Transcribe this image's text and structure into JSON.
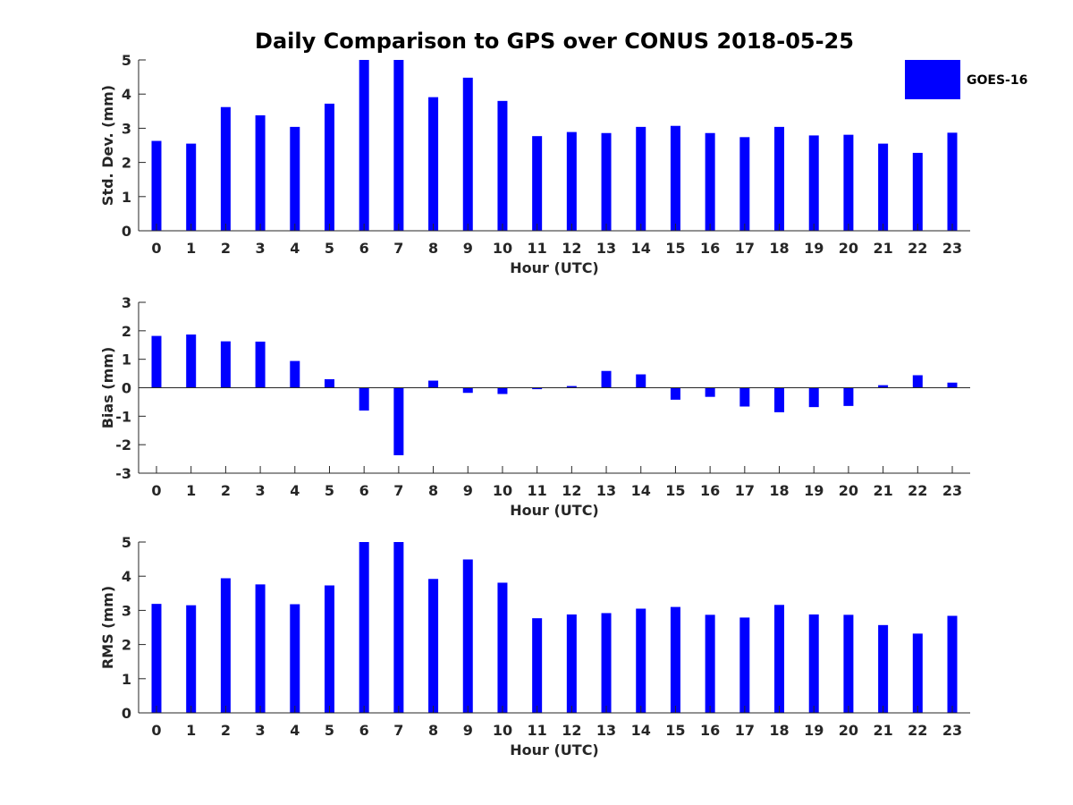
{
  "chart_data": {
    "title": "Daily Comparison to GPS over CONUS 2018-05-25",
    "legend": {
      "label": "GOES-16",
      "color": "#0000ff",
      "placement": "top-right"
    },
    "panels": [
      {
        "type": "bar",
        "xlabel": "Hour (UTC)",
        "ylabel": "Std. Dev. (mm)",
        "ylim": [
          0,
          5
        ],
        "yticks": [
          "0",
          "1",
          "2",
          "3",
          "4",
          "5"
        ],
        "categories": [
          "0",
          "1",
          "2",
          "3",
          "4",
          "5",
          "6",
          "7",
          "8",
          "9",
          "10",
          "11",
          "12",
          "13",
          "14",
          "15",
          "16",
          "17",
          "18",
          "19",
          "20",
          "21",
          "22",
          "23"
        ],
        "series": [
          {
            "name": "GOES-16",
            "values": [
              2.63,
              2.55,
              3.62,
              3.38,
              3.04,
              3.72,
              5.0,
              5.0,
              3.91,
              4.48,
              3.8,
              2.77,
              2.89,
              2.86,
              3.04,
              3.07,
              2.86,
              2.74,
              3.04,
              2.79,
              2.81,
              2.55,
              2.28,
              2.87
            ]
          }
        ]
      },
      {
        "type": "bar",
        "xlabel": "Hour (UTC)",
        "ylabel": "Bias (mm)",
        "ylim": [
          -3,
          3
        ],
        "yticks": [
          "-3",
          "-2",
          "-1",
          "0",
          "1",
          "2",
          "3"
        ],
        "categories": [
          "0",
          "1",
          "2",
          "3",
          "4",
          "5",
          "6",
          "7",
          "8",
          "9",
          "10",
          "11",
          "12",
          "13",
          "14",
          "15",
          "16",
          "17",
          "18",
          "19",
          "20",
          "21",
          "22",
          "23"
        ],
        "series": [
          {
            "name": "GOES-16",
            "values": [
              1.82,
              1.87,
              1.63,
              1.62,
              0.94,
              0.3,
              -0.8,
              -2.37,
              0.25,
              -0.18,
              -0.22,
              -0.05,
              0.06,
              0.59,
              0.47,
              -0.42,
              -0.32,
              -0.66,
              -0.86,
              -0.68,
              -0.64,
              0.09,
              0.44,
              0.18
            ]
          }
        ]
      },
      {
        "type": "bar",
        "xlabel": "Hour (UTC)",
        "ylabel": "RMS (mm)",
        "ylim": [
          0,
          5
        ],
        "yticks": [
          "0",
          "1",
          "2",
          "3",
          "4",
          "5"
        ],
        "categories": [
          "0",
          "1",
          "2",
          "3",
          "4",
          "5",
          "6",
          "7",
          "8",
          "9",
          "10",
          "11",
          "12",
          "13",
          "14",
          "15",
          "16",
          "17",
          "18",
          "19",
          "20",
          "21",
          "22",
          "23"
        ],
        "series": [
          {
            "name": "GOES-16",
            "values": [
              3.19,
              3.15,
              3.94,
              3.76,
              3.18,
              3.73,
              5.0,
              5.0,
              3.92,
              4.49,
              3.81,
              2.77,
              2.88,
              2.92,
              3.05,
              3.1,
              2.87,
              2.79,
              3.16,
              2.88,
              2.87,
              2.57,
              2.32,
              2.84
            ]
          }
        ]
      }
    ]
  }
}
